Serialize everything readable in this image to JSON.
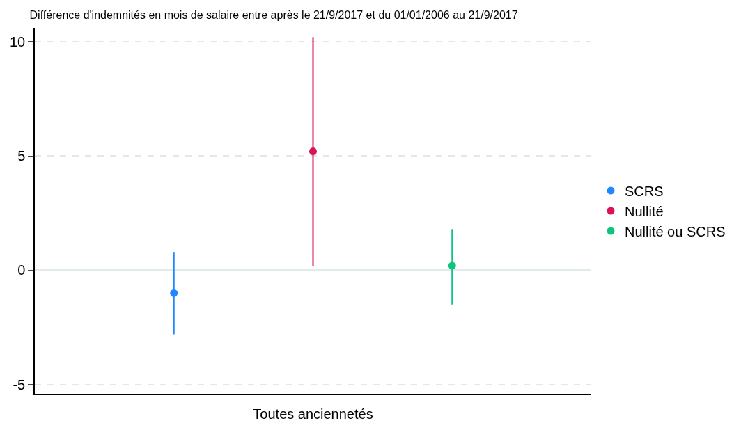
{
  "chart_data": {
    "type": "scatter",
    "title": "Différence d'indemnités en mois de salaire entre après le 21/9/2017 et du 01/01/2006 au 21/9/2017",
    "categories": [
      "Toutes anciennetés"
    ],
    "series": [
      {
        "name": "SCRS",
        "color": "#1f87ff",
        "values": [
          -1.0
        ],
        "errors": [
          [
            -2.8,
            0.8
          ]
        ]
      },
      {
        "name": "Nullité",
        "color": "#d8135a",
        "values": [
          5.2
        ],
        "errors": [
          [
            0.2,
            10.2
          ]
        ]
      },
      {
        "name": "Nullité ou SCRS",
        "color": "#10c47f",
        "values": [
          0.2
        ],
        "errors": [
          [
            -1.5,
            1.8
          ]
        ]
      }
    ],
    "ylim": [
      -5.4,
      10.6
    ],
    "yticks": [
      -5,
      0,
      5,
      10
    ],
    "grid": "y",
    "legend": "right",
    "marker": "circle"
  }
}
